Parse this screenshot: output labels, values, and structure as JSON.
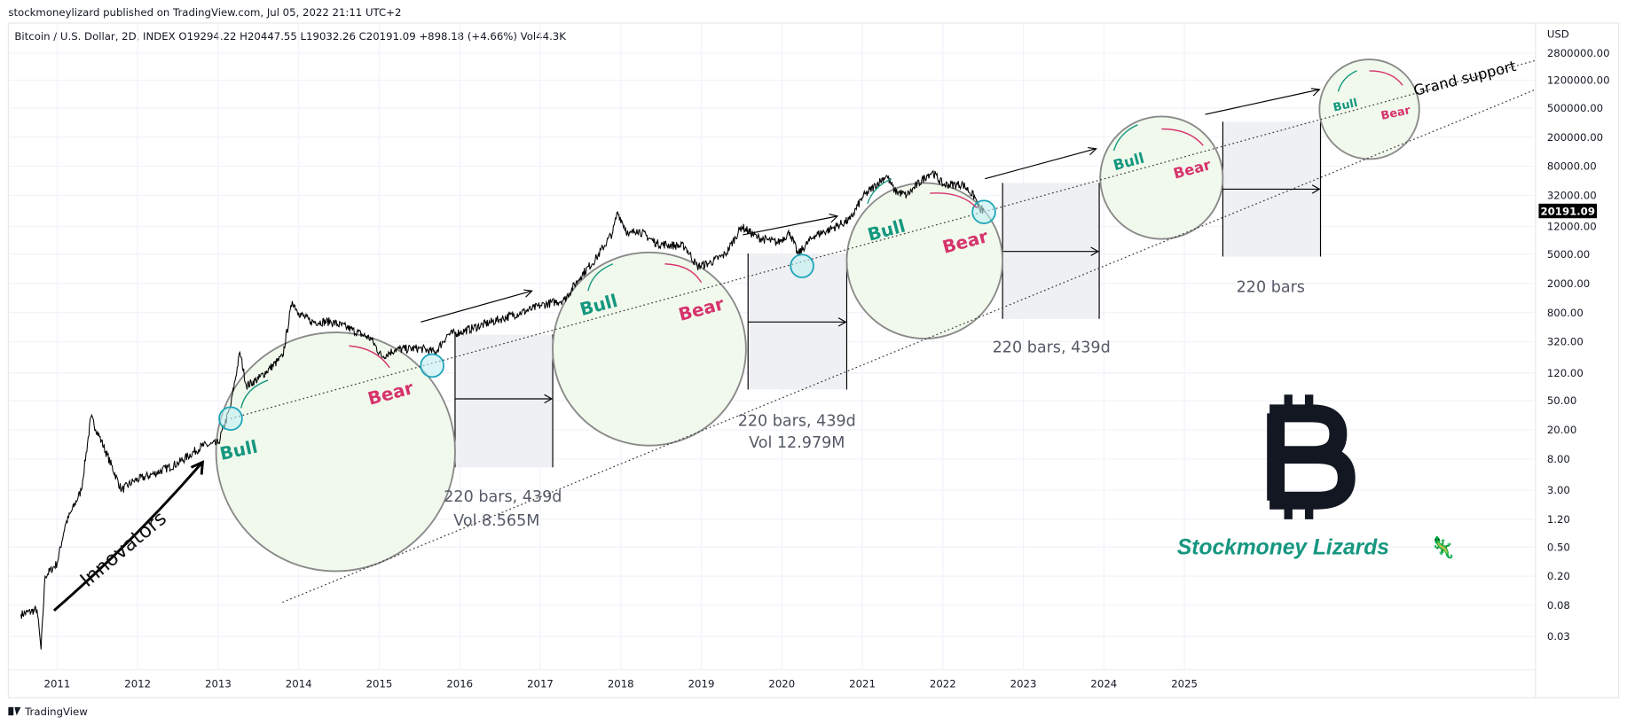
{
  "header": {
    "published": "stockmoneylizard published on TradingView.com, Jul 05, 2022 21:11 UTC+2",
    "symbol_line": "Bitcoin / U.S. Dollar, 2D, INDEX  O19294.22  H20447.55  L19032.26  C20191.09  +898.18 (+4.66%)  Vol44.3K"
  },
  "footer": {
    "brand": "TradingView"
  },
  "chart_data": {
    "type": "line",
    "title": "Bitcoin / U.S. Dollar, 2D, INDEX",
    "ylabel": "USD",
    "yscale": "log",
    "ylim": [
      0.01,
      4000000
    ],
    "xlim": [
      2010.45,
      2029.5
    ],
    "x_ticks": [
      "2011",
      "2012",
      "2013",
      "2014",
      "2015",
      "2016",
      "2017",
      "2018",
      "2019",
      "2020",
      "2021",
      "2022",
      "2023",
      "2024",
      "2025"
    ],
    "y_ticks": [
      "2800000.00",
      "1200000.00",
      "500000.00",
      "200000.00",
      "80000.00",
      "32000.00",
      "12000.00",
      "5000.00",
      "2000.00",
      "800.00",
      "320.00",
      "120.00",
      "50.00",
      "20.00",
      "8.00",
      "3.00",
      "1.20",
      "0.50",
      "0.20",
      "0.08",
      "0.03"
    ],
    "last_price": "20191.09",
    "series": [
      {
        "name": "BTCUSD",
        "points": [
          [
            2010.55,
            0.06
          ],
          [
            2010.75,
            0.07
          ],
          [
            2010.8,
            0.02
          ],
          [
            2010.85,
            0.2
          ],
          [
            2011.0,
            0.3
          ],
          [
            2011.1,
            1
          ],
          [
            2011.3,
            3
          ],
          [
            2011.42,
            30
          ],
          [
            2011.55,
            14
          ],
          [
            2011.8,
            3
          ],
          [
            2011.95,
            4
          ],
          [
            2012.2,
            5
          ],
          [
            2012.5,
            7
          ],
          [
            2012.8,
            12
          ],
          [
            2013.0,
            13
          ],
          [
            2013.15,
            40
          ],
          [
            2013.27,
            230
          ],
          [
            2013.35,
            80
          ],
          [
            2013.5,
            100
          ],
          [
            2013.8,
            200
          ],
          [
            2013.92,
            1150
          ],
          [
            2014.0,
            800
          ],
          [
            2014.15,
            600
          ],
          [
            2014.4,
            600
          ],
          [
            2014.6,
            500
          ],
          [
            2014.9,
            350
          ],
          [
            2015.03,
            200
          ],
          [
            2015.2,
            250
          ],
          [
            2015.5,
            260
          ],
          [
            2015.7,
            230
          ],
          [
            2015.85,
            400
          ],
          [
            2016.0,
            430
          ],
          [
            2016.5,
            650
          ],
          [
            2016.9,
            900
          ],
          [
            2017.0,
            1000
          ],
          [
            2017.3,
            1200
          ],
          [
            2017.5,
            2500
          ],
          [
            2017.7,
            4500
          ],
          [
            2017.9,
            10000
          ],
          [
            2017.96,
            19000
          ],
          [
            2018.1,
            9000
          ],
          [
            2018.2,
            11000
          ],
          [
            2018.45,
            7000
          ],
          [
            2018.8,
            6400
          ],
          [
            2018.95,
            3400
          ],
          [
            2019.1,
            3800
          ],
          [
            2019.3,
            5000
          ],
          [
            2019.5,
            12000
          ],
          [
            2019.7,
            8500
          ],
          [
            2019.95,
            7200
          ],
          [
            2020.1,
            10000
          ],
          [
            2020.2,
            5000
          ],
          [
            2020.4,
            9000
          ],
          [
            2020.6,
            11000
          ],
          [
            2020.85,
            15000
          ],
          [
            2021.0,
            30000
          ],
          [
            2021.3,
            60000
          ],
          [
            2021.4,
            37000
          ],
          [
            2021.55,
            32000
          ],
          [
            2021.8,
            60000
          ],
          [
            2021.87,
            67000
          ],
          [
            2022.0,
            45000
          ],
          [
            2022.25,
            45000
          ],
          [
            2022.4,
            30000
          ],
          [
            2022.46,
            20000
          ],
          [
            2022.51,
            20191.09
          ]
        ]
      }
    ],
    "annotations": {
      "bull": "Bull",
      "bear": "Bear",
      "innovators": "Innovators",
      "grand_support": "Grand support",
      "range1": "220 bars, 439d",
      "range1_vol": "Vol 8.565M",
      "range2": "220 bars, 439d",
      "range2_vol": "Vol 12.979M",
      "range3": "220 bars, 439d",
      "range4": "220 bars"
    }
  },
  "branding": {
    "logo_symbol": "₿",
    "name": "Stockmoney Lizards",
    "mascot": "🦎"
  },
  "colors": {
    "bull": "#16977f",
    "bear": "#d6336c",
    "circle_fill": "#eef8ea",
    "range_fill": "#eef0f3",
    "price_line": "#000000"
  }
}
